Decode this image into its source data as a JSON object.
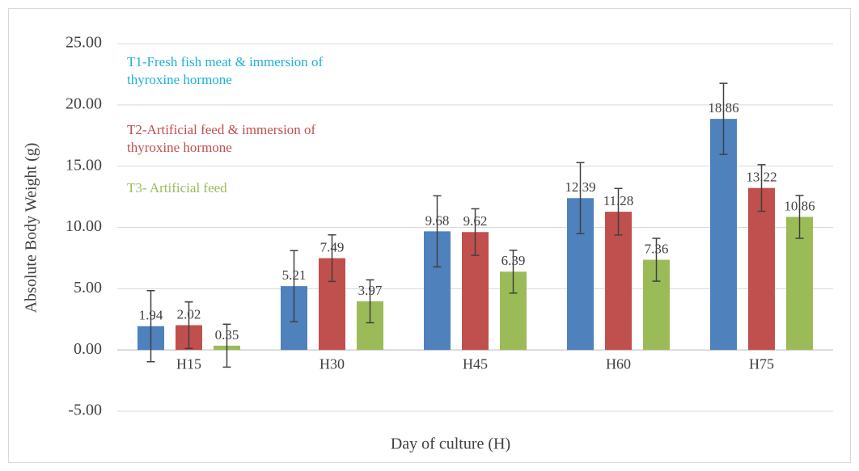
{
  "chart_data": {
    "type": "bar",
    "x_label": "Day of culture (H)",
    "y_label": "Absolute Body Weight (g)",
    "categories": [
      "H15",
      "H30",
      "H45",
      "H60",
      "H75"
    ],
    "series": [
      {
        "name": "T1-Fresh fish meat & immersion of thyroxine hormone",
        "color": "#4f81bd",
        "label_color": "#1fb0dc",
        "values": [
          1.94,
          5.21,
          9.68,
          12.39,
          18.86
        ],
        "errors": [
          2.9,
          2.9,
          2.9,
          2.9,
          2.9
        ]
      },
      {
        "name": "T2-Artificial feed & immersion of thyroxine hormone",
        "color": "#c0504d",
        "label_color": "#c0504d",
        "values": [
          2.02,
          7.49,
          9.62,
          11.28,
          13.22
        ],
        "errors": [
          1.9,
          1.9,
          1.9,
          1.9,
          1.9
        ]
      },
      {
        "name": "T3- Artificial feed",
        "color": "#9bbb59",
        "label_color": "#9bbb59",
        "values": [
          0.35,
          3.97,
          6.39,
          7.36,
          10.86
        ],
        "errors": [
          1.75,
          1.75,
          1.75,
          1.75,
          1.75
        ]
      }
    ],
    "ylim": [
      -5,
      25
    ],
    "yticks": [
      {
        "value": -5,
        "label": "-5.00"
      },
      {
        "value": 0,
        "label": "0.00"
      },
      {
        "value": 5,
        "label": "5.00"
      },
      {
        "value": 10,
        "label": "10.00"
      },
      {
        "value": 15,
        "label": "15.00"
      },
      {
        "value": 20,
        "label": "20.00"
      },
      {
        "value": 25,
        "label": "25.00"
      }
    ],
    "grid": true
  }
}
